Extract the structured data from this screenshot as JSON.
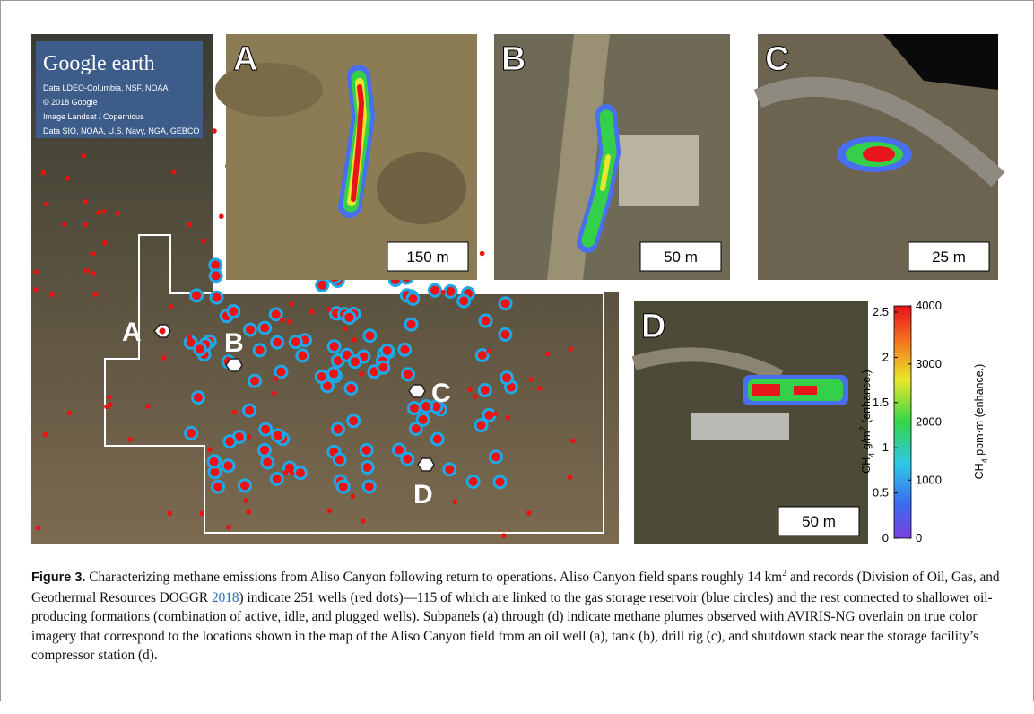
{
  "map": {
    "logo": "Google earth",
    "attribution": [
      "Data LDEO-Columbia, NSF, NOAA",
      "© 2018 Google",
      "Image Landsat / Copernicus",
      "Data SIO, NOAA, U.S. Navy, NGA, GEBCO"
    ],
    "site_labels": [
      "A",
      "B",
      "C",
      "D"
    ]
  },
  "panels": [
    {
      "letter": "A",
      "scale": "150 m"
    },
    {
      "letter": "B",
      "scale": "50 m"
    },
    {
      "letter": "C",
      "scale": "25 m"
    },
    {
      "letter": "D",
      "scale": "50 m"
    }
  ],
  "colorbar": {
    "left_ticks": [
      0,
      0.5,
      1,
      1.5,
      2,
      2.5
    ],
    "right_ticks": [
      0,
      1000,
      2000,
      3000,
      4000
    ],
    "left_label": {
      "base": "CH",
      "sub": "4",
      "mid": " g/m",
      "sup": "2",
      "end": " (enhance.)"
    },
    "right_label": {
      "base": "CH",
      "sub": "4",
      "end": " ppm·m (enhance.)"
    }
  },
  "caption": {
    "label": "Figure 3.",
    "text1": " Characterizing methane emissions from Aliso Canyon following return to operations. Aliso Canyon field spans roughly 14 km",
    "sup": "2",
    "text2": " and records (Division of Oil, Gas, and Geothermal Resources DOGGR ",
    "link": "2018",
    "text3": ") indicate 251 wells (red dots)—115 of which are linked to the gas storage reservoir (blue circles) and the rest connected to shallower oil-producing formations (combination of active, idle, and plugged wells). Subpanels (a) through (d) indicate methane plumes observed with AVIRIS-NG overlain on true color imagery that correspond to the locations shown in the map of the Aliso Canyon field from an oil well (a), tank (b), drill rig (c), and shutdown stack near the storage facility’s compressor station (d)."
  }
}
